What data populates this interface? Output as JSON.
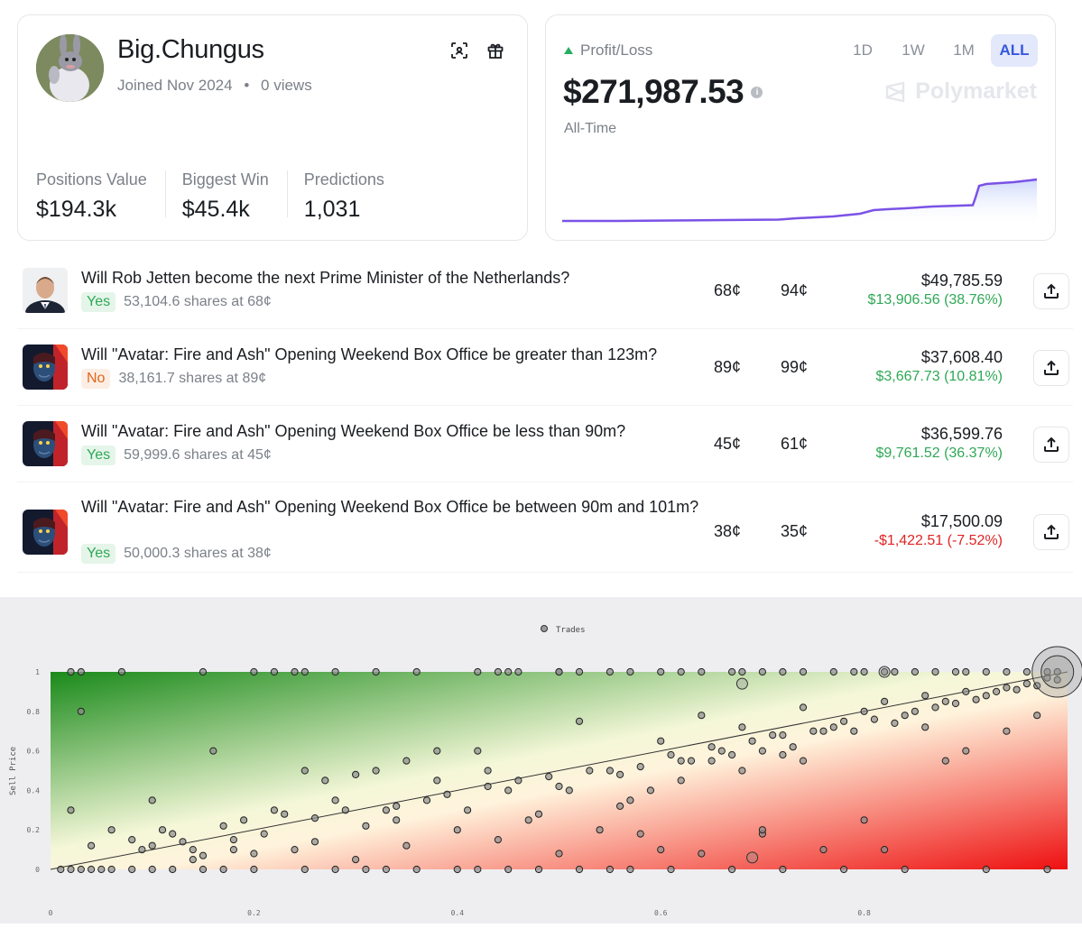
{
  "profile": {
    "username": "Big.Chungus",
    "joined": "Joined Nov 2024",
    "views": "0 views",
    "stats": [
      {
        "label": "Positions Value",
        "value": "$194.3k"
      },
      {
        "label": "Biggest Win",
        "value": "$45.4k"
      },
      {
        "label": "Predictions",
        "value": "1,031"
      }
    ]
  },
  "pnl": {
    "label": "Profit/Loss",
    "amount": "$271,987.53",
    "period": "All-Time",
    "ranges": [
      "1D",
      "1W",
      "1M",
      "ALL"
    ],
    "active_range": "ALL",
    "brand": "Polymarket",
    "colors": {
      "line": "#7b52e6",
      "fill_top": "#cfd9fb",
      "up": "#27ae60"
    }
  },
  "positions": [
    {
      "title": "Will Rob Jetten become the next Prime Minister of the Netherlands?",
      "outcome": "Yes",
      "shares": "53,104.6 shares at 68¢",
      "avg": "68¢",
      "current": "94¢",
      "value": "$49,785.59",
      "change": "$13,906.56 (38.76%)",
      "direction": "up",
      "thumb": "portrait"
    },
    {
      "title": "Will \"Avatar: Fire and Ash\" Opening Weekend Box Office be greater than 123m?",
      "outcome": "No",
      "shares": "38,161.7 shares at 89¢",
      "avg": "89¢",
      "current": "99¢",
      "value": "$37,608.40",
      "change": "$3,667.73 (10.81%)",
      "direction": "up",
      "thumb": "avatar"
    },
    {
      "title": "Will \"Avatar: Fire and Ash\" Opening Weekend Box Office be less than 90m?",
      "outcome": "Yes",
      "shares": "59,999.6 shares at 45¢",
      "avg": "45¢",
      "current": "61¢",
      "value": "$36,599.76",
      "change": "$9,761.52 (36.37%)",
      "direction": "up",
      "thumb": "avatar"
    },
    {
      "title": "Will \"Avatar: Fire and Ash\" Opening Weekend Box Office be between 90m and 101m?",
      "outcome": "Yes",
      "shares": "50,000.3 shares at 38¢",
      "avg": "38¢",
      "current": "35¢",
      "value": "$17,500.09",
      "change": "-$1,422.51 (-7.52%)",
      "direction": "down",
      "thumb": "avatar"
    }
  ],
  "chart_data": {
    "type": "scatter",
    "legend": "Trades",
    "legend_position": "top-center",
    "ylabel": "Sell Price",
    "xlabel": "",
    "xlim": [
      0,
      1
    ],
    "ylim": [
      0,
      1
    ],
    "xticks": [
      "0",
      "0.2",
      "0.4",
      "0.6",
      "0.8"
    ],
    "yticks": [
      "0",
      "0.2",
      "0.4",
      "0.6",
      "0.8",
      "1"
    ],
    "background": "gradient green (top-left, profit) to red (bottom-right, loss)",
    "diagonal_line": true,
    "points": [
      [
        0.02,
        1
      ],
      [
        0.03,
        1
      ],
      [
        0.07,
        1
      ],
      [
        0.15,
        1
      ],
      [
        0.2,
        1
      ],
      [
        0.22,
        1
      ],
      [
        0.24,
        1
      ],
      [
        0.25,
        1
      ],
      [
        0.28,
        1
      ],
      [
        0.32,
        1
      ],
      [
        0.36,
        1
      ],
      [
        0.42,
        1
      ],
      [
        0.44,
        1
      ],
      [
        0.45,
        1
      ],
      [
        0.46,
        1
      ],
      [
        0.5,
        1
      ],
      [
        0.5,
        1
      ],
      [
        0.52,
        1
      ],
      [
        0.55,
        1
      ],
      [
        0.57,
        1
      ],
      [
        0.6,
        1
      ],
      [
        0.62,
        1
      ],
      [
        0.64,
        1
      ],
      [
        0.67,
        1
      ],
      [
        0.68,
        1
      ],
      [
        0.7,
        1
      ],
      [
        0.72,
        1
      ],
      [
        0.74,
        1
      ],
      [
        0.77,
        1
      ],
      [
        0.79,
        1
      ],
      [
        0.8,
        1
      ],
      [
        0.82,
        1
      ],
      [
        0.83,
        1
      ],
      [
        0.85,
        1
      ],
      [
        0.87,
        1
      ],
      [
        0.89,
        1
      ],
      [
        0.9,
        1
      ],
      [
        0.92,
        1
      ],
      [
        0.94,
        1
      ],
      [
        0.96,
        1
      ],
      [
        0.98,
        1
      ],
      [
        0.99,
        1
      ],
      [
        0.01,
        0
      ],
      [
        0.02,
        0
      ],
      [
        0.03,
        0
      ],
      [
        0.04,
        0
      ],
      [
        0.05,
        0
      ],
      [
        0.06,
        0
      ],
      [
        0.08,
        0
      ],
      [
        0.1,
        0
      ],
      [
        0.12,
        0
      ],
      [
        0.15,
        0
      ],
      [
        0.17,
        0
      ],
      [
        0.2,
        0
      ],
      [
        0.25,
        0
      ],
      [
        0.28,
        0
      ],
      [
        0.31,
        0
      ],
      [
        0.33,
        0
      ],
      [
        0.36,
        0
      ],
      [
        0.4,
        0
      ],
      [
        0.42,
        0
      ],
      [
        0.45,
        0
      ],
      [
        0.48,
        0
      ],
      [
        0.52,
        0
      ],
      [
        0.55,
        0
      ],
      [
        0.57,
        0
      ],
      [
        0.61,
        0
      ],
      [
        0.67,
        0
      ],
      [
        0.72,
        0
      ],
      [
        0.78,
        0
      ],
      [
        0.84,
        0
      ],
      [
        0.92,
        0
      ],
      [
        0.98,
        0
      ],
      [
        0.03,
        0.8
      ],
      [
        0.16,
        0.6
      ],
      [
        0.18,
        0.15
      ],
      [
        0.22,
        0.3
      ],
      [
        0.25,
        0.5
      ],
      [
        0.28,
        0.35
      ],
      [
        0.3,
        0.48
      ],
      [
        0.33,
        0.3
      ],
      [
        0.35,
        0.55
      ],
      [
        0.38,
        0.45
      ],
      [
        0.4,
        0.2
      ],
      [
        0.42,
        0.6
      ],
      [
        0.45,
        0.4
      ],
      [
        0.47,
        0.25
      ],
      [
        0.5,
        0.42
      ],
      [
        0.52,
        0.75
      ],
      [
        0.55,
        0.5
      ],
      [
        0.57,
        0.35
      ],
      [
        0.6,
        0.65
      ],
      [
        0.62,
        0.55
      ],
      [
        0.64,
        0.78
      ],
      [
        0.66,
        0.6
      ],
      [
        0.68,
        0.72
      ],
      [
        0.7,
        0.6
      ],
      [
        0.72,
        0.68
      ],
      [
        0.74,
        0.82
      ],
      [
        0.76,
        0.7
      ],
      [
        0.78,
        0.75
      ],
      [
        0.8,
        0.8
      ],
      [
        0.82,
        0.85
      ],
      [
        0.84,
        0.78
      ],
      [
        0.86,
        0.88
      ],
      [
        0.88,
        0.85
      ],
      [
        0.9,
        0.9
      ],
      [
        0.92,
        0.88
      ],
      [
        0.94,
        0.92
      ],
      [
        0.96,
        0.94
      ],
      [
        0.98,
        0.97
      ],
      [
        0.08,
        0.15
      ],
      [
        0.1,
        0.12
      ],
      [
        0.12,
        0.18
      ],
      [
        0.14,
        0.1
      ],
      [
        0.17,
        0.22
      ],
      [
        0.19,
        0.25
      ],
      [
        0.21,
        0.18
      ],
      [
        0.23,
        0.28
      ],
      [
        0.26,
        0.26
      ],
      [
        0.29,
        0.3
      ],
      [
        0.31,
        0.22
      ],
      [
        0.34,
        0.32
      ],
      [
        0.37,
        0.35
      ],
      [
        0.39,
        0.38
      ],
      [
        0.41,
        0.3
      ],
      [
        0.43,
        0.42
      ],
      [
        0.46,
        0.45
      ],
      [
        0.49,
        0.47
      ],
      [
        0.51,
        0.4
      ],
      [
        0.53,
        0.5
      ],
      [
        0.56,
        0.48
      ],
      [
        0.58,
        0.52
      ],
      [
        0.61,
        0.58
      ],
      [
        0.63,
        0.55
      ],
      [
        0.65,
        0.62
      ],
      [
        0.67,
        0.58
      ],
      [
        0.69,
        0.65
      ],
      [
        0.71,
        0.68
      ],
      [
        0.73,
        0.62
      ],
      [
        0.75,
        0.7
      ],
      [
        0.77,
        0.72
      ],
      [
        0.79,
        0.7
      ],
      [
        0.81,
        0.76
      ],
      [
        0.83,
        0.74
      ],
      [
        0.85,
        0.8
      ],
      [
        0.87,
        0.82
      ],
      [
        0.89,
        0.84
      ],
      [
        0.91,
        0.86
      ],
      [
        0.93,
        0.9
      ],
      [
        0.95,
        0.91
      ],
      [
        0.97,
        0.93
      ],
      [
        0.99,
        0.96
      ],
      [
        0.1,
        0.35
      ],
      [
        0.14,
        0.05
      ],
      [
        0.2,
        0.08
      ],
      [
        0.24,
        0.1
      ],
      [
        0.3,
        0.05
      ],
      [
        0.35,
        0.12
      ],
      [
        0.44,
        0.15
      ],
      [
        0.5,
        0.08
      ],
      [
        0.54,
        0.2
      ],
      [
        0.58,
        0.18
      ],
      [
        0.6,
        0.1
      ],
      [
        0.64,
        0.08
      ],
      [
        0.7,
        0.18
      ],
      [
        0.76,
        0.1
      ],
      [
        0.7,
        0.2
      ],
      [
        0.8,
        0.25
      ],
      [
        0.82,
        0.1
      ],
      [
        0.86,
        0.72
      ],
      [
        0.88,
        0.55
      ],
      [
        0.9,
        0.6
      ],
      [
        0.94,
        0.7
      ],
      [
        0.97,
        0.78
      ],
      [
        0.02,
        0.3
      ],
      [
        0.04,
        0.12
      ],
      [
        0.06,
        0.2
      ],
      [
        0.09,
        0.1
      ],
      [
        0.11,
        0.2
      ],
      [
        0.13,
        0.14
      ],
      [
        0.15,
        0.07
      ],
      [
        0.18,
        0.1
      ],
      [
        0.26,
        0.14
      ],
      [
        0.27,
        0.45
      ],
      [
        0.32,
        0.5
      ],
      [
        0.34,
        0.25
      ],
      [
        0.38,
        0.6
      ],
      [
        0.43,
        0.5
      ],
      [
        0.48,
        0.28
      ],
      [
        0.56,
        0.32
      ],
      [
        0.59,
        0.4
      ],
      [
        0.62,
        0.45
      ],
      [
        0.65,
        0.55
      ],
      [
        0.68,
        0.5
      ],
      [
        0.72,
        0.58
      ],
      [
        0.74,
        0.55
      ]
    ]
  }
}
